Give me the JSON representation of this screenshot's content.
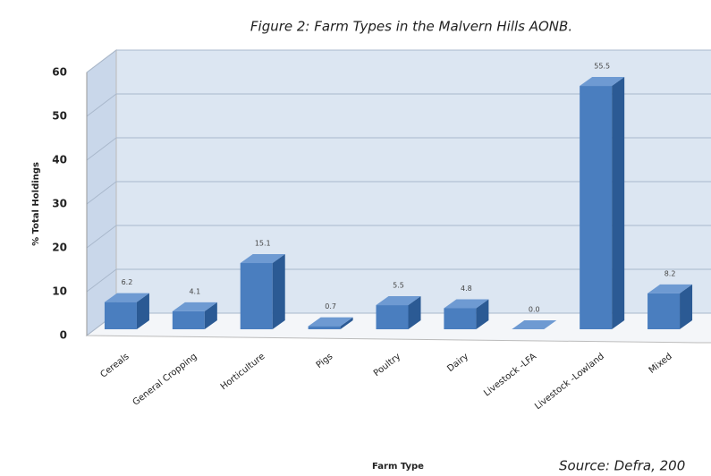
{
  "chart_data": {
    "type": "bar",
    "title": "Figure 2: Farm Types in the Malvern Hills AONB.",
    "x_label": "Farm Type",
    "y_label": "% Total Holdings",
    "source": "Source: Defra, 200",
    "categories": [
      "Cereals",
      "General Cropping",
      "Horticulture",
      "Pigs",
      "Poultry",
      "Dairy",
      "Livestock -LFA",
      "Livestock -Lowland",
      "Mixed"
    ],
    "values": [
      6.2,
      4.1,
      15.1,
      0.7,
      5.5,
      4.8,
      0.0,
      55.5,
      8.2
    ],
    "value_labels": [
      "6.2",
      "4.1",
      "15.1",
      "0.7",
      "5.5",
      "4.8",
      "0.0",
      "55.5",
      "8.2"
    ],
    "color": "#4a7ebf",
    "ylim": [
      0,
      60
    ],
    "yticks": [
      0,
      10,
      20,
      30,
      40,
      50,
      60
    ],
    "grid": true
  }
}
